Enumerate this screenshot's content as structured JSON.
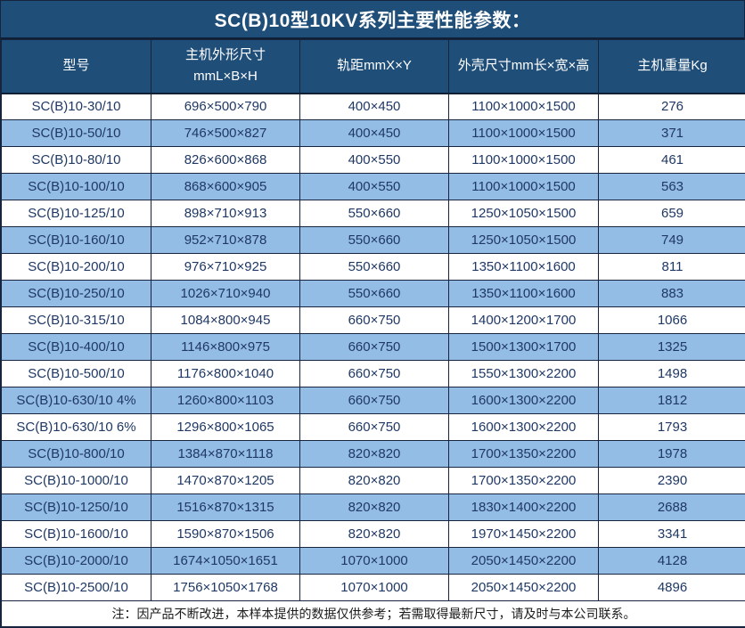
{
  "title": "SC(B)10型10KV系列主要性能参数：",
  "table": {
    "columns": [
      {
        "key": "model",
        "label": "型号"
      },
      {
        "key": "unit_size",
        "label": "主机外形尺寸\nmmL×B×H"
      },
      {
        "key": "rail_gauge",
        "label": "轨距mmX×Y"
      },
      {
        "key": "shell_size",
        "label": "外壳尺寸mm长×宽×高"
      },
      {
        "key": "weight_kg",
        "label": "主机重量Kg"
      }
    ],
    "rows": [
      {
        "model": "SC(B)10-30/10",
        "unit_size": "696×500×790",
        "rail_gauge": "400×450",
        "shell_size": "1100×1000×1500",
        "weight_kg": "276"
      },
      {
        "model": "SC(B)10-50/10",
        "unit_size": "746×500×827",
        "rail_gauge": "400×450",
        "shell_size": "1100×1000×1500",
        "weight_kg": "371"
      },
      {
        "model": "SC(B)10-80/10",
        "unit_size": "826×600×868",
        "rail_gauge": "400×550",
        "shell_size": "1100×1000×1500",
        "weight_kg": "461"
      },
      {
        "model": "SC(B)10-100/10",
        "unit_size": "868×600×905",
        "rail_gauge": "400×550",
        "shell_size": "1100×1000×1500",
        "weight_kg": "563"
      },
      {
        "model": "SC(B)10-125/10",
        "unit_size": "898×710×913",
        "rail_gauge": "550×660",
        "shell_size": "1250×1050×1500",
        "weight_kg": "659"
      },
      {
        "model": "SC(B)10-160/10",
        "unit_size": "952×710×878",
        "rail_gauge": "550×660",
        "shell_size": "1250×1050×1500",
        "weight_kg": "749"
      },
      {
        "model": "SC(B)10-200/10",
        "unit_size": "976×710×925",
        "rail_gauge": "550×660",
        "shell_size": "1350×1100×1600",
        "weight_kg": "811"
      },
      {
        "model": "SC(B)10-250/10",
        "unit_size": "1026×710×940",
        "rail_gauge": "550×660",
        "shell_size": "1350×1100×1600",
        "weight_kg": "883"
      },
      {
        "model": "SC(B)10-315/10",
        "unit_size": "1084×800×945",
        "rail_gauge": "660×750",
        "shell_size": "1400×1200×1700",
        "weight_kg": "1066"
      },
      {
        "model": "SC(B)10-400/10",
        "unit_size": "1146×800×975",
        "rail_gauge": "660×750",
        "shell_size": "1500×1300×1700",
        "weight_kg": "1325"
      },
      {
        "model": "SC(B)10-500/10",
        "unit_size": "1176×800×1040",
        "rail_gauge": "660×750",
        "shell_size": "1550×1300×2200",
        "weight_kg": "1498"
      },
      {
        "model": "SC(B)10-630/10 4%",
        "unit_size": "1260×800×1103",
        "rail_gauge": "660×750",
        "shell_size": "1600×1300×2200",
        "weight_kg": "1812"
      },
      {
        "model": "SC(B)10-630/10 6%",
        "unit_size": "1296×800×1065",
        "rail_gauge": "660×750",
        "shell_size": "1600×1300×2200",
        "weight_kg": "1793"
      },
      {
        "model": "SC(B)10-800/10",
        "unit_size": "1384×870×1118",
        "rail_gauge": "820×820",
        "shell_size": "1700×1350×2200",
        "weight_kg": "1978"
      },
      {
        "model": "SC(B)10-1000/10",
        "unit_size": "1470×870×1205",
        "rail_gauge": "820×820",
        "shell_size": "1700×1350×2200",
        "weight_kg": "2390"
      },
      {
        "model": "SC(B)10-1250/10",
        "unit_size": "1516×870×1315",
        "rail_gauge": "820×820",
        "shell_size": "1830×1400×2200",
        "weight_kg": "2688"
      },
      {
        "model": "SC(B)10-1600/10",
        "unit_size": "1590×870×1506",
        "rail_gauge": "820×820",
        "shell_size": "1970×1450×2200",
        "weight_kg": "3341"
      },
      {
        "model": "SC(B)10-2000/10",
        "unit_size": "1674×1050×1651",
        "rail_gauge": "1070×1000",
        "shell_size": "2050×1450×2200",
        "weight_kg": "4128"
      },
      {
        "model": "SC(B)10-2500/10",
        "unit_size": "1756×1050×1768",
        "rail_gauge": "1070×1000",
        "shell_size": "2050×1450×2200",
        "weight_kg": "4896"
      }
    ]
  },
  "note": "注：因产品不断改进，本样本提供的数据仅供参考；若需取得最新尺寸，请及时与本公司联系。",
  "colors": {
    "header_bg": "#1F4E79",
    "alt_row_bg": "#93BDE5",
    "border": "#16243d",
    "data_text": "#1F3864",
    "header_text": "#ffffff"
  }
}
